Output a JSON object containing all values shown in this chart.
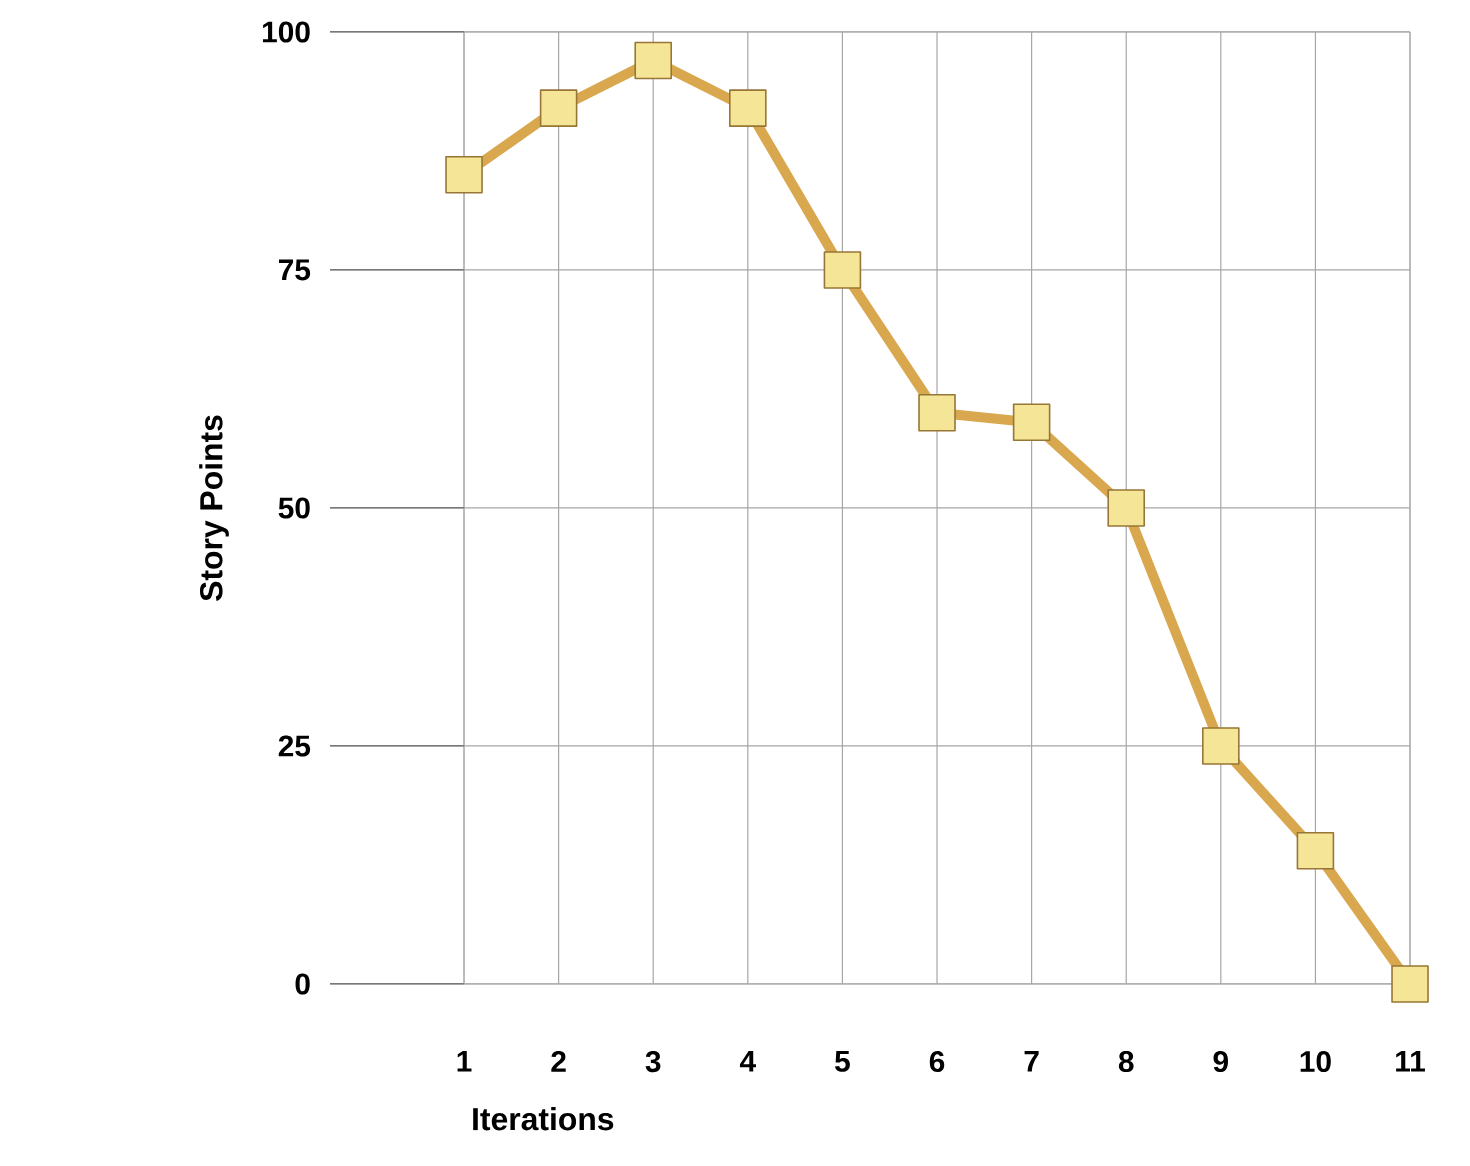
{
  "chart_data": {
    "type": "line",
    "xlabel": "Iterations",
    "ylabel": "Story Points",
    "x": [
      1,
      2,
      3,
      4,
      5,
      6,
      7,
      8,
      9,
      10,
      11
    ],
    "values": [
      85,
      92,
      97,
      92,
      75,
      60,
      59,
      50,
      25,
      14,
      0
    ],
    "color": "#d9a84e",
    "marker": "square",
    "line_style": "solid",
    "xlim": [
      1,
      11
    ],
    "xticks": [
      1,
      2,
      3,
      4,
      5,
      6,
      7,
      8,
      9,
      10,
      11
    ],
    "ylim": [
      0,
      100
    ],
    "yticks": [
      0,
      25,
      50,
      75,
      100
    ],
    "grid": true
  }
}
